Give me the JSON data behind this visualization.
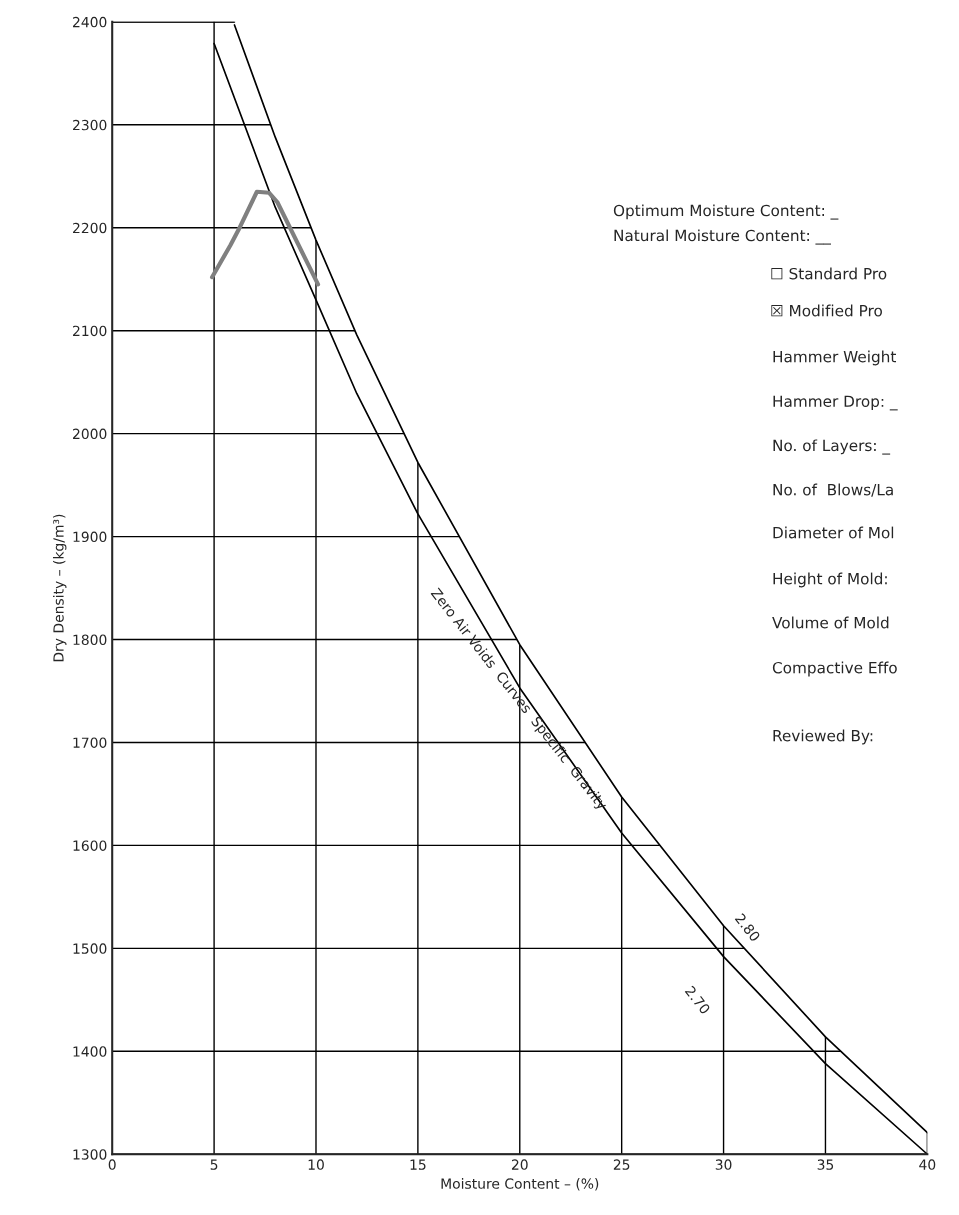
{
  "chart_data": {
    "type": "line",
    "xlabel": "Moisture Content – (%)",
    "ylabel": "Dry Density – (kg/m³)",
    "xlim": [
      0,
      40
    ],
    "ylim": [
      1300,
      2400
    ],
    "xticks": [
      0,
      5,
      10,
      15,
      20,
      25,
      30,
      35,
      40
    ],
    "yticks": [
      1300,
      1400,
      1500,
      1600,
      1700,
      1800,
      1900,
      2000,
      2100,
      2200,
      2300,
      2400
    ],
    "grid": true,
    "series": [
      {
        "name": "2.80",
        "color": "#000000",
        "x": [
          6,
          8,
          10,
          12,
          15,
          20,
          25,
          30,
          35,
          40
        ],
        "values": [
          2397,
          2288,
          2188,
          2096,
          1972,
          1795,
          1647,
          1522,
          1414,
          1321
        ]
      },
      {
        "name": "2.70",
        "color": "#000000",
        "x": [
          5,
          8,
          10,
          12,
          15,
          20,
          25,
          30,
          35,
          40
        ],
        "values": [
          2379,
          2220,
          2130,
          2039,
          1922,
          1753,
          1612,
          1492,
          1388,
          1300
        ]
      },
      {
        "color": "#808080",
        "x": [
          4.9,
          5.8,
          6.2,
          7.1,
          7.7,
          8.1,
          10.1
        ],
        "values": [
          2152,
          2183,
          2198,
          2235,
          2234,
          2225,
          2145
        ]
      }
    ],
    "annotations": [
      "Zero Air Voids  Curves  Specific  Gravity",
      "Optimum Moisture Content: _",
      "Natural Moisture Content: __",
      "☐ Standard Pro",
      "☒ Modified Pro",
      "Hammer Weight",
      "Hammer Drop: _",
      "No. of Layers: _",
      "No. of  Blows/La",
      "Diameter of Mol",
      "Height of Mold:",
      "Volume of Mold",
      "Compactive Effo",
      "Reviewed By:"
    ]
  }
}
